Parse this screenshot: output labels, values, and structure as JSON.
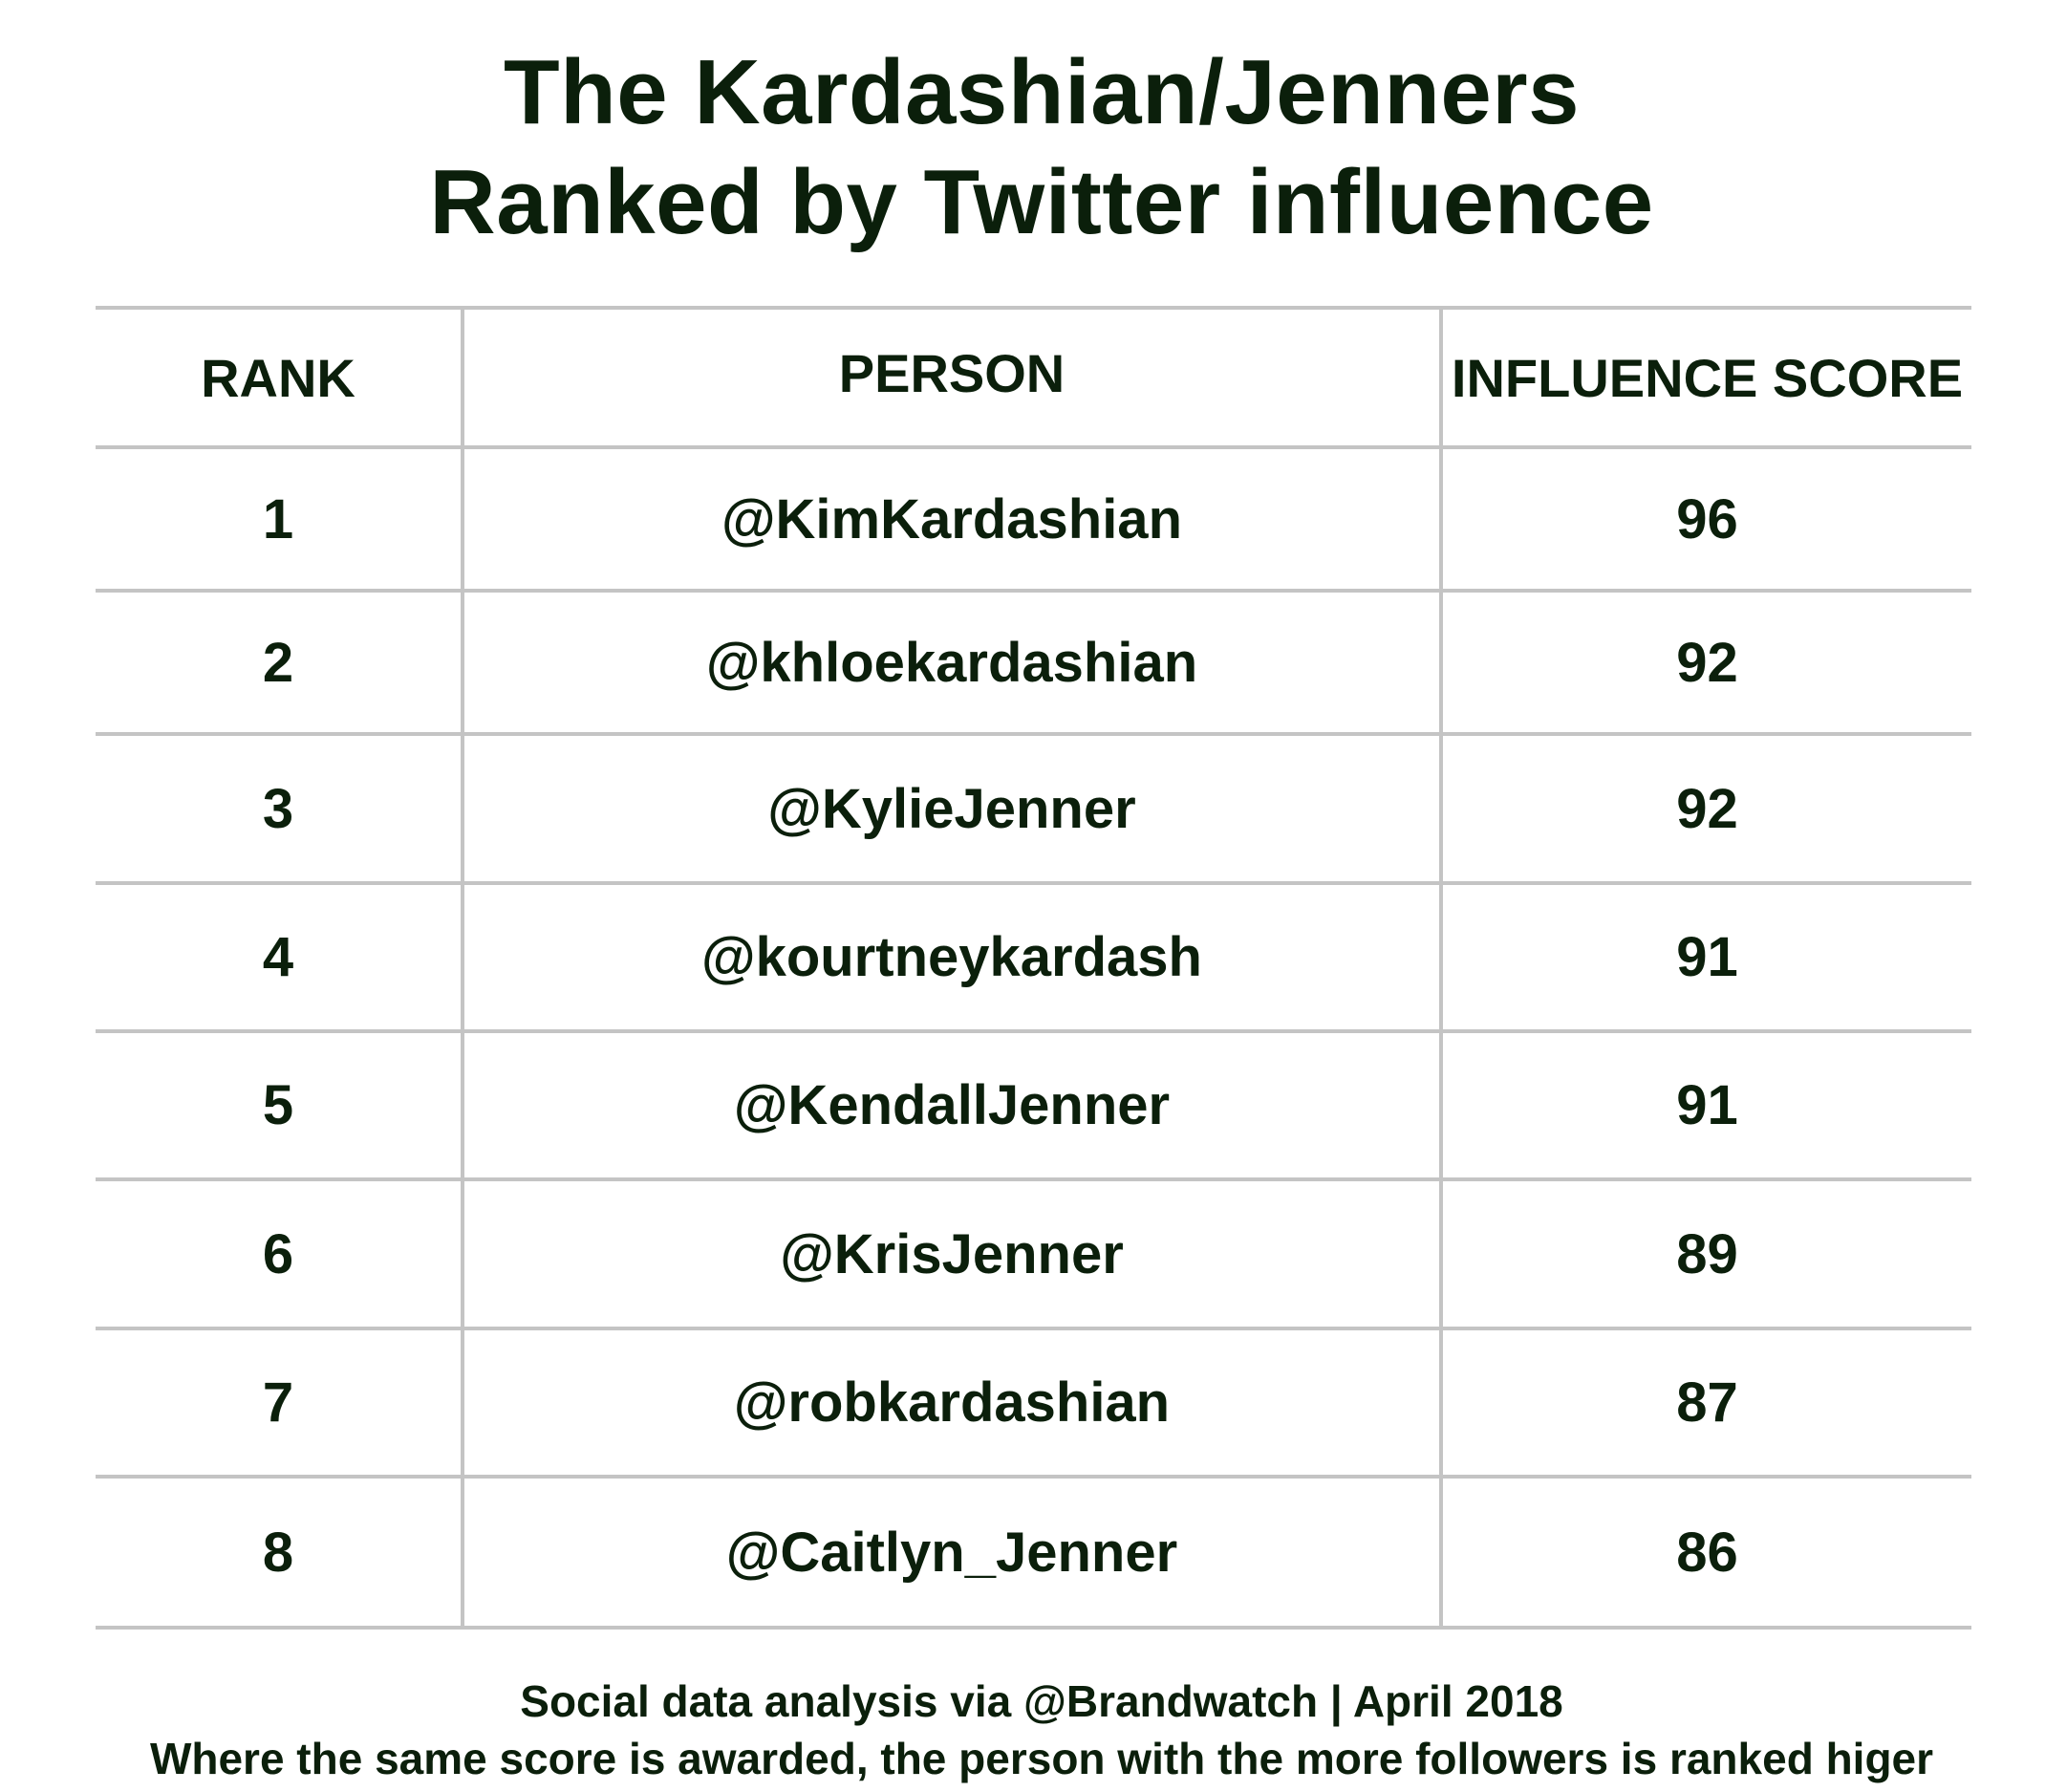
{
  "chart_data": {
    "type": "table",
    "title": [
      "The Kardashian/Jenners",
      "Ranked by Twitter influence"
    ],
    "columns": [
      "RANK",
      "PERSON",
      "INFLUENCE SCORE"
    ],
    "rows": [
      {
        "rank": "1",
        "person": "@KimKardashian",
        "score": 96
      },
      {
        "rank": "2",
        "person": "@khloekardashian",
        "score": 92
      },
      {
        "rank": "3",
        "person": "@KylieJenner",
        "score": 92
      },
      {
        "rank": "4",
        "person": "@kourtneykardash",
        "score": 91
      },
      {
        "rank": "5",
        "person": "@KendallJenner",
        "score": 91
      },
      {
        "rank": "6",
        "person": "@KrisJenner",
        "score": 89
      },
      {
        "rank": "7",
        "person": "@robkardashian",
        "score": 87
      },
      {
        "rank": "8",
        "person": "@Caitlyn_Jenner",
        "score": 86
      }
    ],
    "footer": [
      "Social data analysis via @Brandwatch | April 2018",
      "Where the same score is awarded, the person with the more followers is ranked higer"
    ]
  },
  "colors": {
    "text": "#0b1f0b",
    "grid": "#c4c4c4",
    "background": "#ffffff"
  }
}
